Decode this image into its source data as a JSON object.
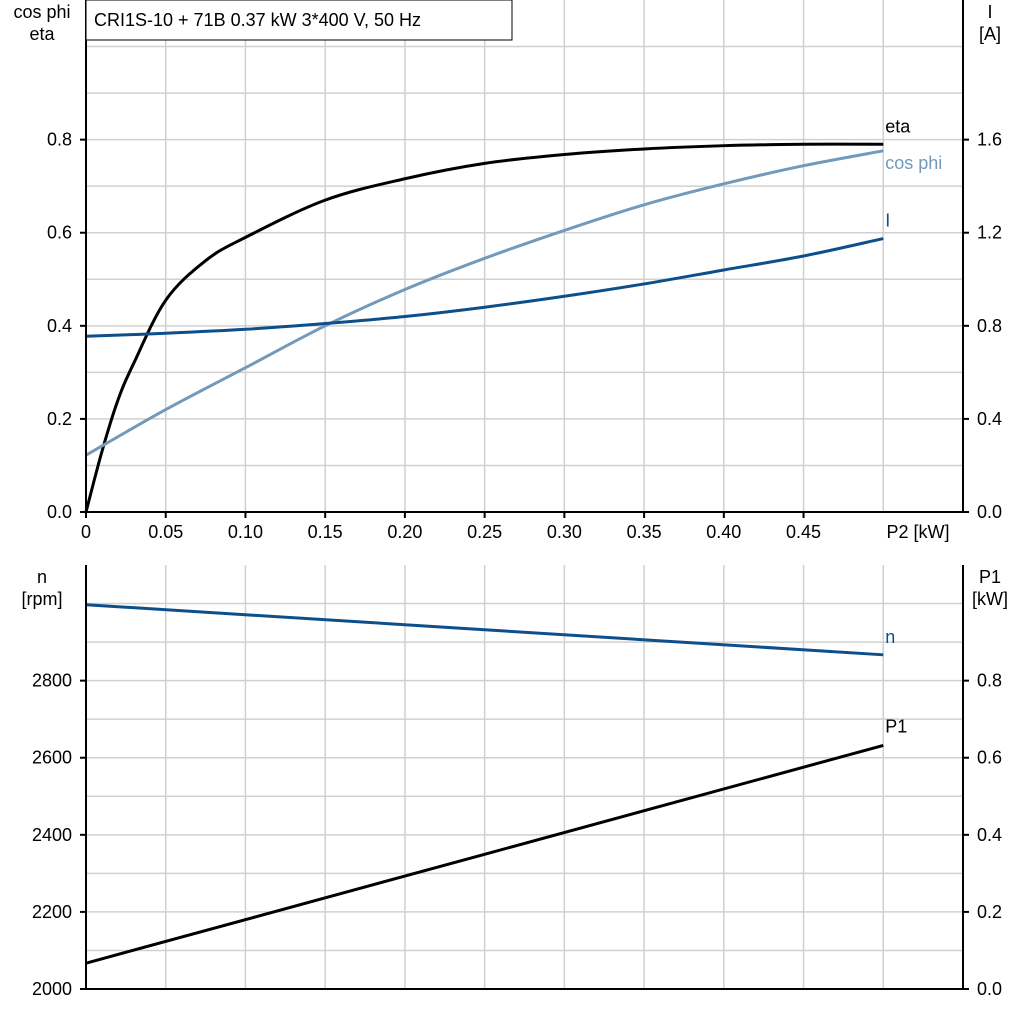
{
  "chart_data": [
    {
      "type": "line",
      "title": "CRI1S-10 + 71B   0.37 kW   3*400 V, 50 Hz",
      "xlabel": "P2 [kW]",
      "ylabel_left": [
        "cos phi",
        "eta"
      ],
      "ylabel_right": [
        "I",
        "[A]"
      ],
      "xlim": [
        0,
        0.55
      ],
      "ylim_left": [
        0,
        1.1
      ],
      "ylim_right": [
        0,
        2.2
      ],
      "xticks": [
        "0",
        "0.05",
        "0.10",
        "0.15",
        "0.20",
        "0.25",
        "0.30",
        "0.35",
        "0.40",
        "0.45"
      ],
      "yticks_left": [
        "0.0",
        "0.2",
        "0.4",
        "0.6",
        "0.8"
      ],
      "yticks_right": [
        "0.0",
        "0.4",
        "0.8",
        "1.2",
        "1.6"
      ],
      "grid": true,
      "x": [
        0,
        0.05,
        0.1,
        0.15,
        0.2,
        0.25,
        0.3,
        0.35,
        0.4,
        0.45,
        0.5
      ],
      "series": [
        {
          "name": "eta",
          "axis": "left",
          "color": "#000000",
          "x": [
            0,
            0.01,
            0.02,
            0.03,
            0.05,
            0.075,
            0.1,
            0.15,
            0.2,
            0.25,
            0.3,
            0.35,
            0.4,
            0.45,
            0.5
          ],
          "values": [
            0,
            0.13,
            0.24,
            0.32,
            0.455,
            0.54,
            0.59,
            0.67,
            0.716,
            0.749,
            0.768,
            0.78,
            0.787,
            0.79,
            0.79
          ]
        },
        {
          "name": "cos phi",
          "axis": "left",
          "color": "#7399bb",
          "x": [
            0,
            0.05,
            0.1,
            0.15,
            0.2,
            0.25,
            0.3,
            0.35,
            0.4,
            0.45,
            0.5
          ],
          "values": [
            0.122,
            0.22,
            0.31,
            0.4,
            0.478,
            0.545,
            0.605,
            0.66,
            0.705,
            0.744,
            0.776
          ]
        },
        {
          "name": "I",
          "axis": "right",
          "color": "#0d4f8b",
          "x": [
            0,
            0.05,
            0.1,
            0.15,
            0.2,
            0.25,
            0.3,
            0.35,
            0.4,
            0.45,
            0.5
          ],
          "values": [
            0.755,
            0.768,
            0.785,
            0.81,
            0.84,
            0.88,
            0.927,
            0.98,
            1.04,
            1.1,
            1.175
          ]
        }
      ]
    },
    {
      "type": "line",
      "xlim": [
        0,
        0.55
      ],
      "ylabel_left": [
        "n",
        "[rpm]"
      ],
      "ylabel_right": [
        "P1",
        "[kW]"
      ],
      "ylim_left": [
        2000,
        3100
      ],
      "ylim_right": [
        0,
        1.1
      ],
      "yticks_left": [
        "2000",
        "2200",
        "2400",
        "2600",
        "2800"
      ],
      "yticks_right": [
        "0.0",
        "0.2",
        "0.4",
        "0.6",
        "0.8"
      ],
      "grid": true,
      "series": [
        {
          "name": "n",
          "axis": "left",
          "color": "#0d4f8b",
          "x": [
            0,
            0.5
          ],
          "values": [
            2997,
            2867
          ]
        },
        {
          "name": "P1",
          "axis": "right",
          "color": "#000000",
          "x": [
            0,
            0.5
          ],
          "values": [
            0.067,
            0.632
          ]
        }
      ]
    }
  ]
}
